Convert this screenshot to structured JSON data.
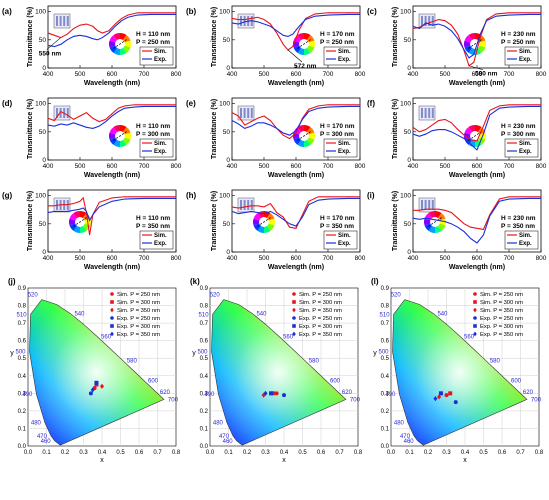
{
  "figure": {
    "colors": {
      "sim": "#e8141b",
      "exp": "#1b2fd9",
      "annot_blue": "#2a2ad0",
      "annot_red": "#d41c1c"
    },
    "spectra_common": {
      "xlabel": "Wavelength (nm)",
      "ylabel": "Transmittance (%)",
      "xticks": [
        400,
        500,
        600,
        700,
        800
      ],
      "yticks": [
        0,
        50,
        100
      ],
      "legend": [
        "Sim.",
        "Exp."
      ]
    },
    "cie_common": {
      "xlabel": "x",
      "ylabel": "y",
      "xticks": [
        "0.0",
        "0.1",
        "0.2",
        "0.3",
        "0.4",
        "0.5",
        "0.6",
        "0.7",
        "0.8"
      ],
      "yticks": [
        "0.0",
        "0.1",
        "0.2",
        "0.3",
        "0.4",
        "0.5",
        "0.6",
        "0.7",
        "0.8",
        "0.9"
      ],
      "wavelength_labels": [
        "460",
        "470",
        "480",
        "490",
        "500",
        "510",
        "520",
        "540",
        "560",
        "580",
        "600",
        "620",
        "700"
      ],
      "legend": [
        "Sim. P = 250 nm",
        "Sim. P = 300 nm",
        "Sim. P = 350 nm",
        "Exp. P = 250 nm",
        "Exp. P = 300 nm",
        "Exp. P = 350 nm"
      ]
    }
  },
  "chart_data": [
    {
      "type": "line",
      "panel": "(a)",
      "H": "H = 110 nm",
      "P": "P = 250 nm",
      "annotation": "550 nm",
      "xlim": [
        400,
        800
      ],
      "ylim": [
        0,
        110
      ],
      "series": [
        {
          "name": "Sim.",
          "x": [
            400,
            420,
            440,
            460,
            480,
            500,
            520,
            540,
            555,
            570,
            590,
            610,
            630,
            650,
            680,
            720,
            760,
            800
          ],
          "y": [
            62,
            58,
            54,
            60,
            70,
            76,
            78,
            74,
            66,
            62,
            66,
            78,
            88,
            94,
            98,
            98,
            98,
            98
          ]
        },
        {
          "name": "Exp.",
          "x": [
            400,
            420,
            440,
            460,
            480,
            500,
            520,
            540,
            555,
            570,
            590,
            610,
            630,
            650,
            680,
            720,
            760,
            800
          ],
          "y": [
            40,
            38,
            42,
            50,
            56,
            58,
            56,
            52,
            50,
            54,
            62,
            74,
            84,
            90,
            94,
            95,
            95,
            95
          ]
        }
      ]
    },
    {
      "type": "line",
      "panel": "(b)",
      "H": "H = 170 nm",
      "P": "P = 250 nm",
      "annotation": "572 nm",
      "xlim": [
        400,
        800
      ],
      "ylim": [
        0,
        110
      ],
      "series": [
        {
          "name": "Sim.",
          "x": [
            400,
            420,
            440,
            460,
            480,
            500,
            520,
            540,
            560,
            575,
            590,
            610,
            630,
            660,
            700,
            760,
            800
          ],
          "y": [
            88,
            86,
            86,
            88,
            90,
            86,
            78,
            62,
            42,
            32,
            38,
            68,
            88,
            96,
            98,
            98,
            98
          ]
        },
        {
          "name": "Exp.",
          "x": [
            400,
            420,
            440,
            460,
            480,
            500,
            520,
            540,
            560,
            575,
            590,
            610,
            630,
            660,
            700,
            760,
            800
          ],
          "y": [
            80,
            78,
            82,
            84,
            82,
            78,
            74,
            66,
            58,
            56,
            60,
            74,
            86,
            92,
            94,
            95,
            95
          ]
        }
      ]
    },
    {
      "type": "line",
      "panel": "(c)",
      "H": "H = 230 nm",
      "P": "P = 250 nm",
      "annotation": "580 nm",
      "xlim": [
        400,
        800
      ],
      "ylim": [
        0,
        110
      ],
      "series": [
        {
          "name": "Sim.",
          "x": [
            400,
            420,
            440,
            460,
            480,
            500,
            520,
            540,
            560,
            575,
            590,
            610,
            630,
            660,
            700,
            760,
            800
          ],
          "y": [
            70,
            72,
            78,
            82,
            86,
            84,
            76,
            60,
            30,
            4,
            10,
            54,
            86,
            96,
            98,
            98,
            98
          ]
        },
        {
          "name": "Exp.",
          "x": [
            400,
            420,
            440,
            460,
            480,
            500,
            520,
            540,
            560,
            575,
            590,
            610,
            630,
            660,
            700,
            760,
            800
          ],
          "y": [
            74,
            70,
            80,
            76,
            78,
            74,
            66,
            52,
            32,
            18,
            24,
            60,
            84,
            92,
            94,
            95,
            95
          ]
        }
      ]
    },
    {
      "type": "line",
      "panel": "(d)",
      "H": "H = 110 nm",
      "P": "P = 300 nm",
      "xlim": [
        400,
        800
      ],
      "ylim": [
        0,
        110
      ],
      "series": [
        {
          "name": "Sim.",
          "x": [
            400,
            420,
            440,
            460,
            480,
            500,
            520,
            540,
            560,
            580,
            600,
            620,
            640,
            670,
            700,
            760,
            800
          ],
          "y": [
            74,
            70,
            86,
            80,
            72,
            78,
            84,
            74,
            68,
            72,
            82,
            92,
            96,
            98,
            98,
            98,
            98
          ]
        },
        {
          "name": "Exp.",
          "x": [
            400,
            420,
            440,
            460,
            480,
            500,
            520,
            540,
            560,
            580,
            600,
            620,
            640,
            670,
            700,
            760,
            800
          ],
          "y": [
            62,
            60,
            64,
            62,
            66,
            62,
            58,
            56,
            60,
            68,
            78,
            86,
            92,
            94,
            95,
            95,
            95
          ]
        }
      ]
    },
    {
      "type": "line",
      "panel": "(e)",
      "H": "H = 170 nm",
      "P": "P = 300 nm",
      "xlim": [
        400,
        800
      ],
      "ylim": [
        0,
        110
      ],
      "series": [
        {
          "name": "Sim.",
          "x": [
            400,
            420,
            440,
            460,
            480,
            500,
            520,
            540,
            560,
            580,
            600,
            620,
            640,
            670,
            700,
            760,
            800
          ],
          "y": [
            84,
            78,
            62,
            68,
            74,
            78,
            70,
            56,
            44,
            38,
            48,
            74,
            90,
            96,
            98,
            98,
            98
          ]
        },
        {
          "name": "Exp.",
          "x": [
            400,
            420,
            440,
            460,
            480,
            500,
            520,
            540,
            560,
            580,
            600,
            620,
            640,
            670,
            700,
            760,
            800
          ],
          "y": [
            70,
            64,
            56,
            60,
            66,
            66,
            62,
            56,
            48,
            44,
            52,
            72,
            86,
            92,
            94,
            95,
            95
          ]
        }
      ]
    },
    {
      "type": "line",
      "panel": "(f)",
      "H": "H = 230 nm",
      "P": "P = 300 nm",
      "xlim": [
        400,
        800
      ],
      "ylim": [
        0,
        110
      ],
      "series": [
        {
          "name": "Sim.",
          "x": [
            400,
            420,
            440,
            460,
            480,
            500,
            520,
            540,
            560,
            580,
            600,
            620,
            640,
            670,
            700,
            760,
            800
          ],
          "y": [
            58,
            50,
            54,
            62,
            70,
            72,
            66,
            54,
            44,
            36,
            34,
            60,
            88,
            96,
            98,
            98,
            98
          ]
        },
        {
          "name": "Exp.",
          "x": [
            400,
            420,
            440,
            460,
            480,
            500,
            520,
            540,
            560,
            580,
            600,
            620,
            640,
            670,
            700,
            760,
            800
          ],
          "y": [
            46,
            42,
            46,
            52,
            54,
            54,
            50,
            44,
            38,
            28,
            18,
            46,
            80,
            92,
            94,
            95,
            95
          ]
        }
      ]
    },
    {
      "type": "line",
      "panel": "(g)",
      "H": "H = 110 nm",
      "P": "P = 350 nm",
      "xlim": [
        400,
        800
      ],
      "ylim": [
        0,
        110
      ],
      "series": [
        {
          "name": "Sim.",
          "x": [
            400,
            420,
            440,
            460,
            480,
            500,
            510,
            520,
            530,
            540,
            560,
            600,
            640,
            700,
            760,
            800
          ],
          "y": [
            82,
            82,
            84,
            84,
            86,
            90,
            96,
            70,
            30,
            66,
            88,
            96,
            98,
            98,
            98,
            98
          ]
        },
        {
          "name": "Exp.",
          "x": [
            400,
            420,
            440,
            460,
            480,
            500,
            510,
            520,
            530,
            540,
            560,
            600,
            640,
            700,
            760,
            800
          ],
          "y": [
            70,
            72,
            72,
            72,
            74,
            76,
            78,
            72,
            56,
            66,
            80,
            90,
            94,
            95,
            95,
            95
          ]
        }
      ]
    },
    {
      "type": "line",
      "panel": "(h)",
      "H": "H = 170 nm",
      "P": "P = 350 nm",
      "xlim": [
        400,
        800
      ],
      "ylim": [
        0,
        110
      ],
      "series": [
        {
          "name": "Sim.",
          "x": [
            400,
            420,
            440,
            460,
            480,
            500,
            520,
            540,
            560,
            580,
            600,
            620,
            640,
            670,
            700,
            760,
            800
          ],
          "y": [
            80,
            78,
            80,
            82,
            82,
            80,
            86,
            70,
            62,
            44,
            42,
            66,
            90,
            98,
            98,
            98,
            98
          ]
        },
        {
          "name": "Exp.",
          "x": [
            400,
            420,
            440,
            460,
            480,
            500,
            520,
            540,
            560,
            580,
            600,
            620,
            640,
            670,
            700,
            760,
            800
          ],
          "y": [
            72,
            68,
            70,
            72,
            70,
            68,
            72,
            66,
            58,
            50,
            46,
            62,
            84,
            92,
            94,
            95,
            95
          ]
        }
      ]
    },
    {
      "type": "line",
      "panel": "(i)",
      "H": "H = 230 nm",
      "P": "P = 350 nm",
      "xlim": [
        400,
        800
      ],
      "ylim": [
        0,
        110
      ],
      "series": [
        {
          "name": "Sim.",
          "x": [
            400,
            420,
            440,
            460,
            480,
            500,
            520,
            540,
            560,
            580,
            600,
            620,
            640,
            670,
            700,
            760,
            800
          ],
          "y": [
            74,
            74,
            76,
            76,
            76,
            74,
            70,
            60,
            50,
            44,
            42,
            40,
            66,
            94,
            98,
            98,
            98
          ]
        },
        {
          "name": "Exp.",
          "x": [
            400,
            420,
            440,
            460,
            480,
            500,
            520,
            540,
            560,
            580,
            600,
            620,
            640,
            670,
            700,
            760,
            800
          ],
          "y": [
            60,
            58,
            60,
            58,
            56,
            54,
            50,
            44,
            36,
            24,
            16,
            30,
            64,
            90,
            94,
            95,
            95
          ]
        }
      ]
    },
    {
      "type": "scatter",
      "panel": "(j)",
      "xlim": [
        0,
        0.8
      ],
      "ylim": [
        0,
        0.9
      ],
      "series": [
        {
          "name": "Sim. P = 250 nm",
          "x": [
            0.36
          ],
          "y": [
            0.33
          ]
        },
        {
          "name": "Sim. P = 300 nm",
          "x": [
            0.37
          ],
          "y": [
            0.35
          ]
        },
        {
          "name": "Sim. P = 350 nm",
          "x": [
            0.4
          ],
          "y": [
            0.34
          ]
        },
        {
          "name": "Exp. P = 250 nm",
          "x": [
            0.34
          ],
          "y": [
            0.3
          ]
        },
        {
          "name": "Exp. P = 300 nm",
          "x": [
            0.37
          ],
          "y": [
            0.36
          ]
        },
        {
          "name": "Exp. P = 350 nm",
          "x": [
            0.35
          ],
          "y": [
            0.32
          ]
        }
      ]
    },
    {
      "type": "scatter",
      "panel": "(k)",
      "xlim": [
        0,
        0.8
      ],
      "ylim": [
        0,
        0.9
      ],
      "series": [
        {
          "name": "Sim. P = 250 nm",
          "x": [
            0.36
          ],
          "y": [
            0.3
          ]
        },
        {
          "name": "Sim. P = 300 nm",
          "x": [
            0.34
          ],
          "y": [
            0.3
          ]
        },
        {
          "name": "Sim. P = 350 nm",
          "x": [
            0.29
          ],
          "y": [
            0.29
          ]
        },
        {
          "name": "Exp. P = 250 nm",
          "x": [
            0.4
          ],
          "y": [
            0.29
          ]
        },
        {
          "name": "Exp. P = 300 nm",
          "x": [
            0.33
          ],
          "y": [
            0.3
          ]
        },
        {
          "name": "Exp. P = 350 nm",
          "x": [
            0.3
          ],
          "y": [
            0.3
          ]
        }
      ]
    },
    {
      "type": "scatter",
      "panel": "(l)",
      "xlim": [
        0,
        0.8
      ],
      "ylim": [
        0,
        0.9
      ],
      "series": [
        {
          "name": "Sim. P = 250 nm",
          "x": [
            0.3
          ],
          "y": [
            0.29
          ]
        },
        {
          "name": "Sim. P = 300 nm",
          "x": [
            0.32
          ],
          "y": [
            0.3
          ]
        },
        {
          "name": "Sim. P = 350 nm",
          "x": [
            0.26
          ],
          "y": [
            0.28
          ]
        },
        {
          "name": "Exp. P = 250 nm",
          "x": [
            0.35
          ],
          "y": [
            0.25
          ]
        },
        {
          "name": "Exp. P = 300 nm",
          "x": [
            0.27
          ],
          "y": [
            0.3
          ]
        },
        {
          "name": "Exp. P = 350 nm",
          "x": [
            0.24
          ],
          "y": [
            0.27
          ]
        }
      ]
    }
  ]
}
